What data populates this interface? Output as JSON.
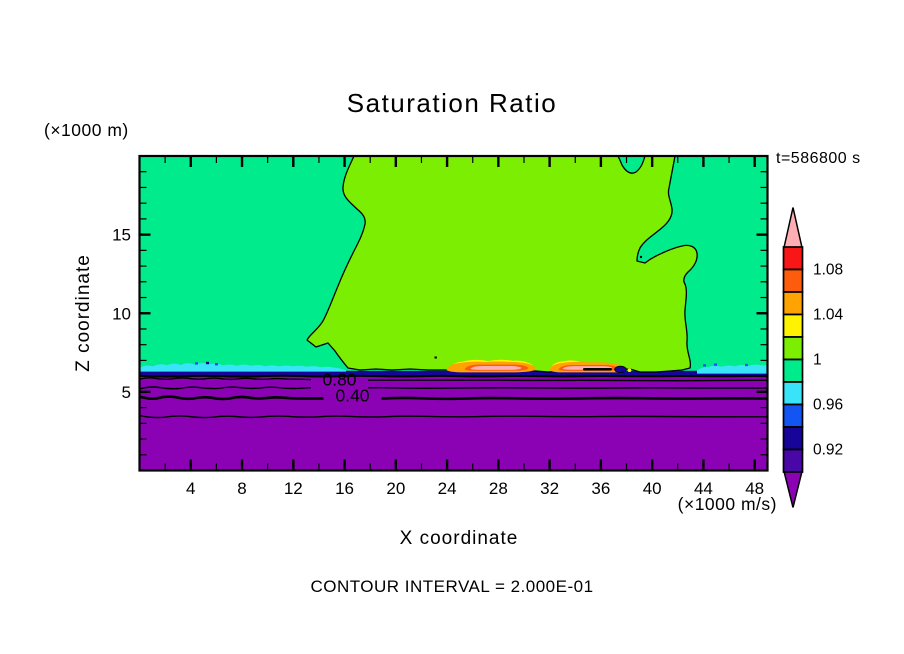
{
  "title": "Saturation Ratio",
  "time_label": "t=586800 s",
  "y_axis_unit": "(×1000 m)",
  "x_axis_unit": "(×1000 m/s)",
  "x_axis_label": "X coordinate",
  "y_axis_label": "Z coordinate",
  "contour_note": "CONTOUR INTERVAL = 2.000E-01",
  "contour_labels": {
    "upper": "0.80",
    "lower": "0.40"
  },
  "axes": {
    "x": {
      "range": [
        0,
        49
      ],
      "minor_step": 2,
      "tick_values": [
        4,
        8,
        12,
        16,
        20,
        24,
        28,
        32,
        36,
        40,
        44,
        48
      ],
      "tick_labels": [
        "4",
        "8",
        "12",
        "16",
        "20",
        "24",
        "28",
        "32",
        "36",
        "40",
        "44",
        "48"
      ]
    },
    "y": {
      "range": [
        0,
        20
      ],
      "minor_step": 1,
      "tick_values": [
        5,
        10,
        15
      ],
      "tick_labels": [
        "5",
        "10",
        "15"
      ]
    }
  },
  "colorbar": {
    "tick_labels": [
      "1.08",
      "1.04",
      "1",
      "0.96",
      "0.92"
    ],
    "cell_colors": [
      "#F91616",
      "#FD5C0D",
      "#FFA302",
      "#FFF301",
      "#7CEE02",
      "#00EC8C",
      "#3AE4F8",
      "#1355F2",
      "#17059A",
      "#4A07A8"
    ],
    "over_color": "#FFAEB4",
    "under_color": "#8A02B4"
  },
  "palette": {
    "pink": "#FFAEB4",
    "red": "#F91616",
    "orange_red": "#FD5C0D",
    "orange": "#FFA302",
    "yellow": "#FFF301",
    "yellow_green": "#7CEE02",
    "spring_green": "#00EC8C",
    "cyan": "#3AE4F8",
    "blue": "#1355F2",
    "dark_blue": "#17059A",
    "indigo": "#4A07A8",
    "purple": "#8A02B4"
  },
  "chart_data": {
    "type": "heatmap",
    "title": "Saturation Ratio",
    "xlabel": "X coordinate",
    "ylabel": "Z coordinate",
    "x_units": "×1000 m/s",
    "y_units": "×1000 m",
    "xlim": [
      0,
      49
    ],
    "ylim": [
      0,
      20
    ],
    "x_ticks": [
      4,
      8,
      12,
      16,
      20,
      24,
      28,
      32,
      36,
      40,
      44,
      48
    ],
    "y_ticks": [
      5,
      10,
      15
    ],
    "grid": false,
    "legend_position": "right-colorbar",
    "time_seconds": 586800,
    "contour_interval": 0.2,
    "colorbar_tick_values": [
      1.08,
      1.04,
      1.0,
      0.96,
      0.92
    ],
    "colorbar_cell_ranges_top_to_bottom": [
      [
        1.08,
        1.1
      ],
      [
        1.06,
        1.08
      ],
      [
        1.04,
        1.06
      ],
      [
        1.02,
        1.04
      ],
      [
        1.0,
        1.02
      ],
      [
        0.98,
        1.0
      ],
      [
        0.96,
        0.98
      ],
      [
        0.94,
        0.96
      ],
      [
        0.92,
        0.94
      ],
      [
        0.9,
        0.92
      ]
    ],
    "filled_regions": [
      {
        "value_range": [
          0.98,
          1.0
        ],
        "color": "#00EC8C",
        "where": "upper background above z≈6.3 for x<16.5, and for x>43 right of the plume; also narrow pocket at top edge x≈37.3–39.4"
      },
      {
        "value_range": [
          1.0,
          1.02
        ],
        "color": "#7CEE02",
        "where": "central plume reaching the top edge between x≈16.7 and x≈41.8, leftmost point x≈13.1 at z≈8.3, right edge x≈42.9, base at z≈6.4"
      },
      {
        "value_range": [
          0.96,
          0.98
        ],
        "color": "#3AE4F8",
        "where": "thin wavy layer at z≈6.2–6.6 for x<16 and x>43.5"
      },
      {
        "value_range": [
          0.9,
          0.96
        ],
        "color": "#17059A",
        "where": "thin dark layer at z≈6.0–6.2 across the full width"
      },
      {
        "value_range": [
          1.04,
          1.1
        ],
        "color": "#FFF301,#FFA302,#FD5C0D,#FFAEB4",
        "where": "two supersaturated lenses at z≈6.4–6.6: x≈24–31 and x≈32–38 (pink cores ≈1.08–1.10)"
      },
      {
        "value_range": [
          0.0,
          0.9
        ],
        "color": "#8A02B4",
        "where": "entire lower region below z≈6.0"
      }
    ],
    "line_contours": [
      {
        "value": 0.8,
        "z_approx": 5.8,
        "labeled": true
      },
      {
        "value": 0.6,
        "z_approx": 5.2,
        "labeled": false
      },
      {
        "value": 0.4,
        "z_approx": 4.6,
        "labeled": true
      },
      {
        "value": 0.2,
        "z_approx": 3.4,
        "labeled": false
      }
    ]
  }
}
